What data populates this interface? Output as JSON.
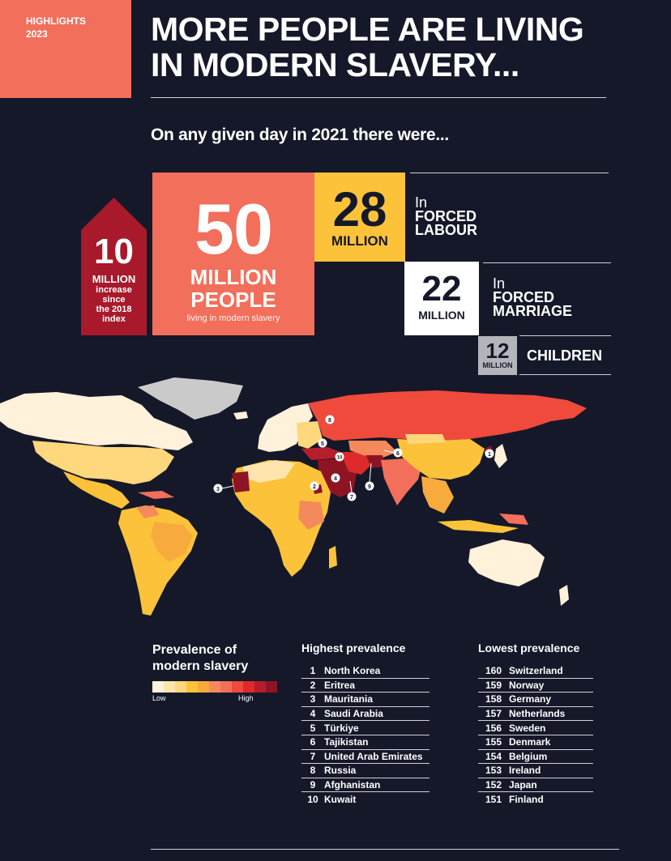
{
  "header": {
    "tag_line1": "HIGHLIGHTS",
    "tag_line2": "2023",
    "title_line1": "MORE PEOPLE ARE LIVING",
    "title_line2": "IN MODERN SLAVERY...",
    "subtitle": "On any given day in 2021 there were..."
  },
  "stats": {
    "increase": {
      "number": "10",
      "unit": "MILLION",
      "desc1": "increase",
      "desc2": "since",
      "desc3": "the 2018",
      "desc4": "index"
    },
    "total": {
      "number": "50",
      "unit1": "MILLION",
      "unit2": "PEOPLE",
      "desc": "living in modern slavery"
    },
    "forced_labour": {
      "number": "28",
      "unit": "MILLION",
      "prefix": "In",
      "label1": "FORCED",
      "label2": "LABOUR"
    },
    "forced_marriage": {
      "number": "22",
      "unit": "MILLION",
      "prefix": "In",
      "label1": "FORCED",
      "label2": "MARRIAGE"
    },
    "children": {
      "number": "12",
      "unit": "MILLION",
      "label": "CHILDREN"
    }
  },
  "map": {
    "markers": [
      "1",
      "2",
      "3",
      "4",
      "5",
      "6",
      "7",
      "8",
      "9",
      "10"
    ]
  },
  "legend": {
    "title_line1": "Prevalence of",
    "title_line2": "modern slavery",
    "low": "Low",
    "high": "High",
    "colors": [
      "#fff1da",
      "#ffe4ad",
      "#ffd77c",
      "#fcc33a",
      "#f7ab3c",
      "#f48a5c",
      "#f26f5b",
      "#ef4a3c",
      "#dd2a2a",
      "#b51e2b",
      "#8e1424"
    ]
  },
  "highest": {
    "heading": "Highest prevalence",
    "items": [
      {
        "rank": "1",
        "country": "North Korea"
      },
      {
        "rank": "2",
        "country": "Eritrea"
      },
      {
        "rank": "3",
        "country": "Mauritania"
      },
      {
        "rank": "4",
        "country": "Saudi Arabia"
      },
      {
        "rank": "5",
        "country": "Türkiye"
      },
      {
        "rank": "6",
        "country": "Tajikistan"
      },
      {
        "rank": "7",
        "country": "United Arab Emirates"
      },
      {
        "rank": "8",
        "country": "Russia"
      },
      {
        "rank": "9",
        "country": "Afghanistan"
      },
      {
        "rank": "10",
        "country": "Kuwait"
      }
    ]
  },
  "lowest": {
    "heading": "Lowest prevalence",
    "items": [
      {
        "rank": "160",
        "country": "Switzerland"
      },
      {
        "rank": "159",
        "country": "Norway"
      },
      {
        "rank": "158",
        "country": "Germany"
      },
      {
        "rank": "157",
        "country": "Netherlands"
      },
      {
        "rank": "156",
        "country": "Sweden"
      },
      {
        "rank": "155",
        "country": "Denmark"
      },
      {
        "rank": "154",
        "country": "Belgium"
      },
      {
        "rank": "153",
        "country": "Ireland"
      },
      {
        "rank": "152",
        "country": "Japan"
      },
      {
        "rank": "151",
        "country": "Finland"
      }
    ]
  }
}
